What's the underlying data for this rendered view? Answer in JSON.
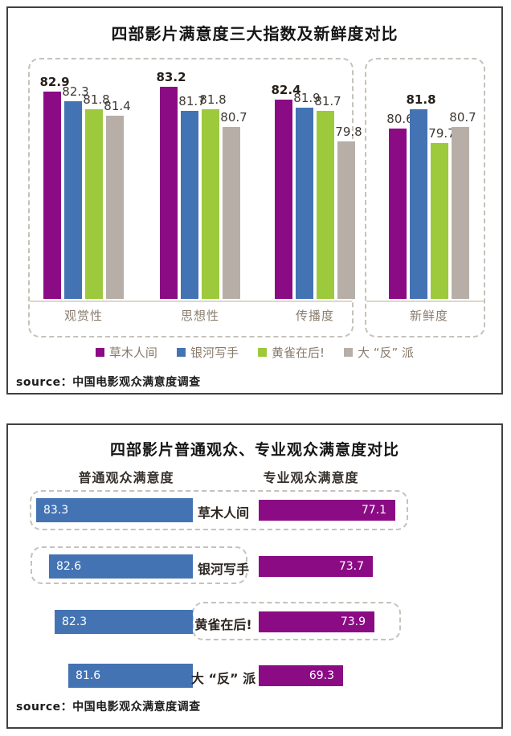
{
  "colors": {
    "purple": "#8a0b84",
    "blue": "#4473b4",
    "green": "#9dc93d",
    "gray": "#b7afa7",
    "card_border": "#414141",
    "dashed_border": "#c6c1ba",
    "value_text": "#3e3833",
    "muted_text": "#8a7d6e",
    "bar_value_text": "#ffffff"
  },
  "chart_data": [
    {
      "type": "bar",
      "title": "四部影片满意度三大指数及新鲜度对比",
      "source": "source：中国电影观众满意度调查",
      "categories": [
        "观赏性",
        "思想性",
        "传播度",
        "新鲜度"
      ],
      "series": [
        {
          "name": "草木人间",
          "color": "#8a0b84",
          "values": [
            82.9,
            83.2,
            82.4,
            80.6
          ]
        },
        {
          "name": "银河写手",
          "color": "#4473b4",
          "values": [
            82.3,
            81.7,
            81.9,
            81.8
          ]
        },
        {
          "name": "黄雀在后!",
          "color": "#9dc93d",
          "values": [
            81.8,
            81.8,
            81.7,
            79.7
          ]
        },
        {
          "name": "大 “反” 派",
          "color": "#b7afa7",
          "values": [
            81.4,
            80.7,
            79.8,
            80.7
          ]
        }
      ],
      "value_labels": true,
      "bold_rule": "max-in-group",
      "ylim": [
        70,
        85
      ],
      "grid": false,
      "legend_position": "bottom"
    },
    {
      "type": "bar",
      "orientation": "horizontal-paired",
      "title": "四部影片普通观众、专业观众满意度对比",
      "source": "source：中国电影观众满意度调查",
      "categories": [
        "草木人间",
        "银河写手",
        "黄雀在后!",
        "大 “反” 派"
      ],
      "series": [
        {
          "name": "普通观众满意度",
          "color": "#4473b4",
          "values": [
            83.3,
            82.6,
            82.3,
            81.6
          ]
        },
        {
          "name": "专业观众满意度",
          "color": "#8a0b84",
          "values": [
            77.1,
            73.7,
            73.9,
            69.3
          ]
        }
      ],
      "value_labels": true,
      "grid": false
    }
  ]
}
